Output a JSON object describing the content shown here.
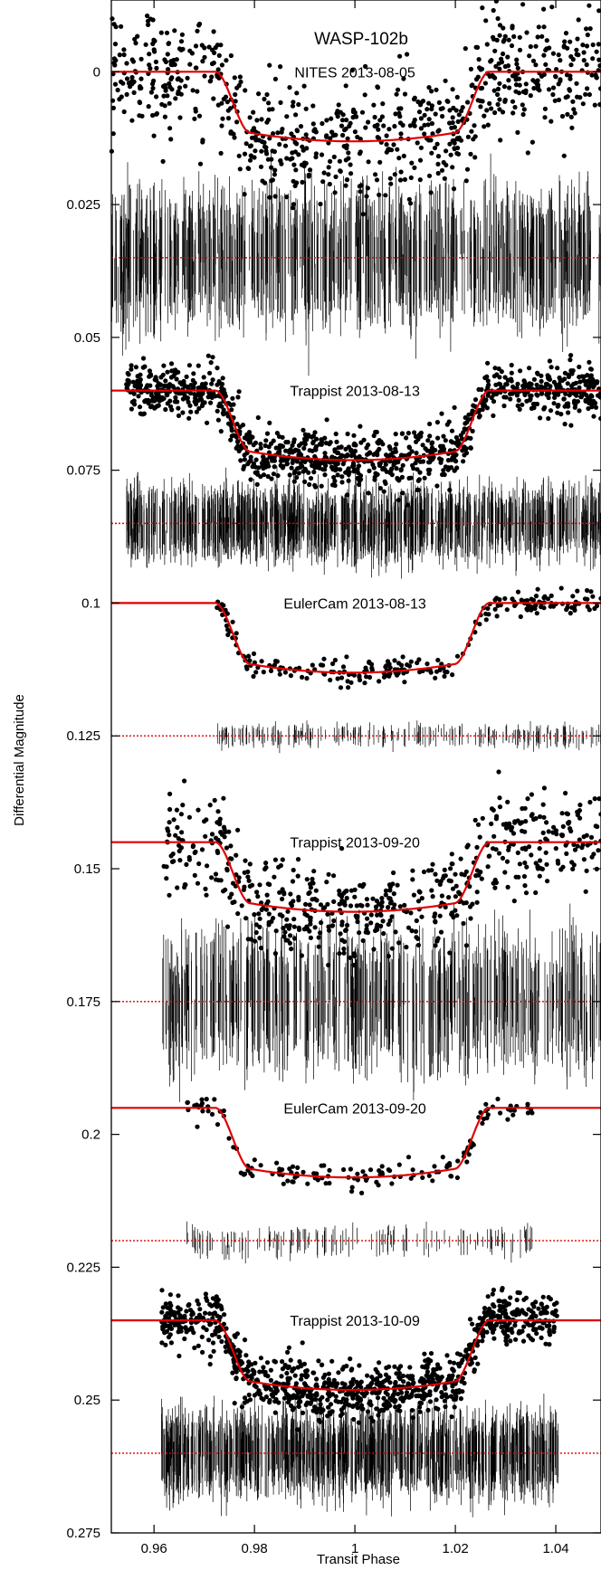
{
  "chart_data": {
    "type": "scatter",
    "title": "WASP-102b",
    "xlabel": "Transit Phase",
    "ylabel": "Differential Magnitude",
    "xlim": [
      0.9515,
      1.049
    ],
    "ylim": [
      0.275,
      -0.0135
    ],
    "y_inverted": true,
    "x_ticks": [
      0.96,
      0.98,
      1,
      1.02,
      1.04
    ],
    "x_tick_labels": [
      "0.96",
      "0.98",
      "1",
      "1.02",
      "1.04"
    ],
    "y_ticks": [
      0,
      0.025,
      0.05,
      0.075,
      0.1,
      0.125,
      0.15,
      0.175,
      0.2,
      0.225,
      0.25,
      0.275
    ],
    "y_tick_labels": [
      "0",
      "0.025",
      "0.05",
      "0.075",
      "0.1",
      "0.125",
      "0.15",
      "0.175",
      "0.2",
      "0.225",
      "0.25",
      "0.275"
    ],
    "grid": false,
    "legend": "none",
    "colors": {
      "data": "#000000",
      "model": "#e00000",
      "residual_zero": "#e00000"
    },
    "transit_model": {
      "t1": 0.9722,
      "t2": 0.9792,
      "t3": 1.0198,
      "t4": 1.0268,
      "mid_extra_depth": 0.0016
    },
    "series": [
      {
        "name": "NITES 2013-08-05",
        "baseline": 0.0,
        "depth": 0.0115,
        "x_range": [
          0.9515,
          1.049
        ],
        "model_x_range": [
          0.9515,
          1.049
        ],
        "residual_offset": 0.035,
        "point_scatter": 0.0055,
        "residual_scatter": 0.0065,
        "n_points": 800
      },
      {
        "name": "Trappist 2013-08-13",
        "baseline": 0.06,
        "depth": 0.0115,
        "x_range": [
          0.9545,
          1.049
        ],
        "model_x_range": [
          0.9515,
          1.049
        ],
        "residual_offset": 0.085,
        "point_scatter": 0.0025,
        "residual_scatter": 0.0035,
        "n_points": 1100
      },
      {
        "name": "EulerCam 2013-08-13",
        "baseline": 0.1,
        "depth": 0.0115,
        "x_range": [
          0.9725,
          1.049
        ],
        "model_x_range": [
          0.9515,
          1.049
        ],
        "residual_offset": 0.125,
        "point_scatter": 0.0011,
        "residual_scatter": 0.0011,
        "n_points": 240
      },
      {
        "name": "Trappist 2013-09-20",
        "baseline": 0.145,
        "depth": 0.0115,
        "x_range": [
          0.9615,
          1.049
        ],
        "model_x_range": [
          0.9515,
          1.049
        ],
        "residual_offset": 0.175,
        "point_scatter": 0.0045,
        "residual_scatter": 0.0065,
        "n_points": 600
      },
      {
        "name": "EulerCam 2013-09-20",
        "baseline": 0.195,
        "depth": 0.0115,
        "x_range": [
          0.9665,
          1.0355
        ],
        "model_x_range": [
          0.9515,
          1.049
        ],
        "residual_offset": 0.22,
        "point_scatter": 0.0012,
        "residual_scatter": 0.0015,
        "n_points": 150
      },
      {
        "name": "Trappist 2013-10-09",
        "baseline": 0.235,
        "depth": 0.0115,
        "x_range": [
          0.9615,
          1.0405
        ],
        "model_x_range": [
          0.9515,
          1.049
        ],
        "residual_offset": 0.26,
        "point_scatter": 0.0025,
        "residual_scatter": 0.004,
        "n_points": 1000
      }
    ]
  }
}
